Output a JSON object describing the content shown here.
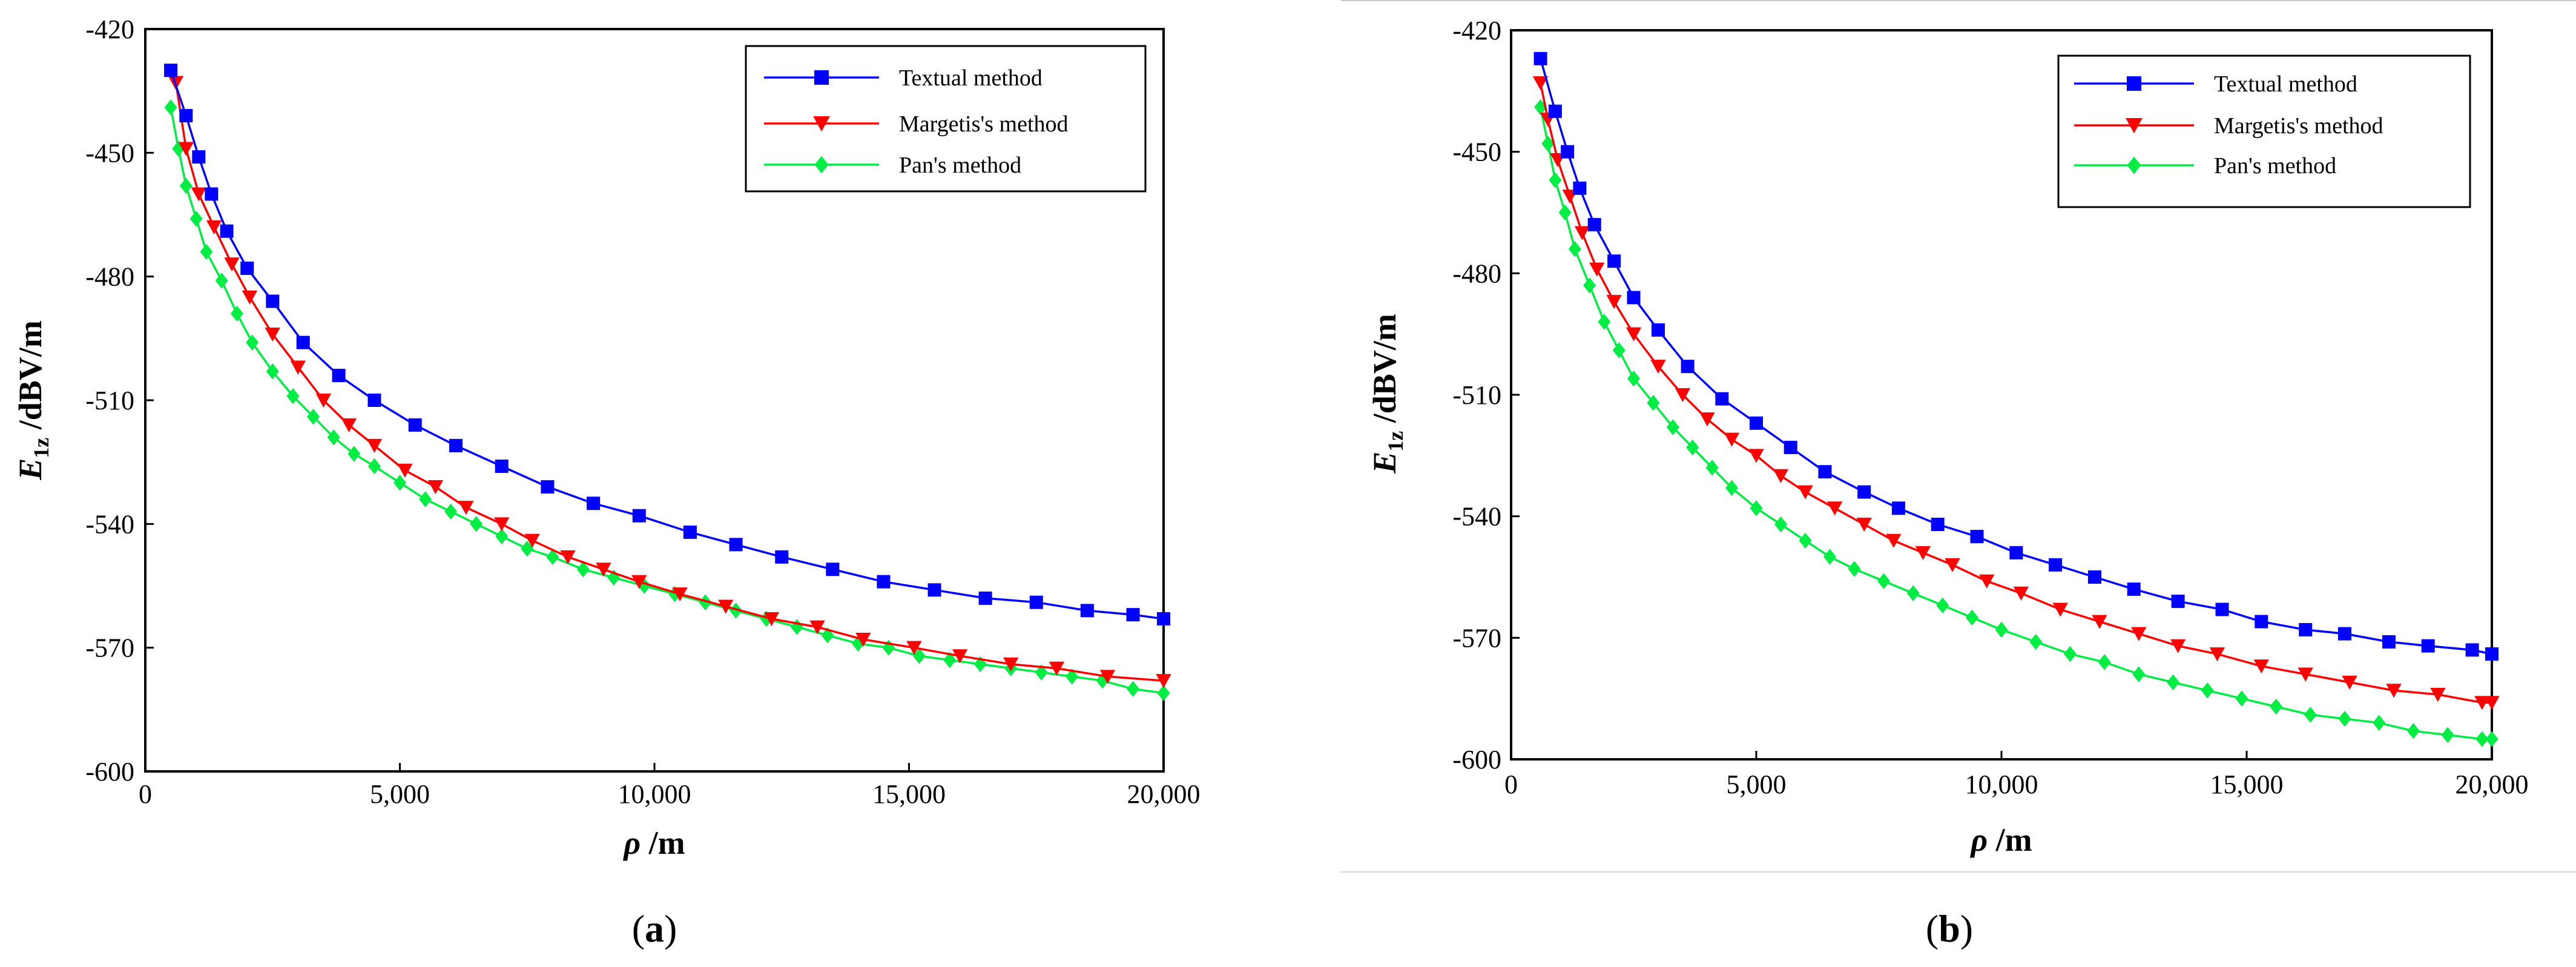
{
  "chart_data": [
    {
      "id": "a",
      "type": "line",
      "caption": "(a)",
      "caption_letter": "a",
      "xlabel": "ρ /m",
      "ylabel": "E1z /dBV/m",
      "xlim": [
        0,
        20000
      ],
      "ylim": [
        -600,
        -420
      ],
      "xticks": [
        0,
        5000,
        10000,
        15000,
        20000
      ],
      "xtick_labels": [
        "0",
        "5,000",
        "10,000",
        "15,000",
        "20,000"
      ],
      "yticks": [
        -420,
        -450,
        -480,
        -510,
        -540,
        -570,
        -600
      ],
      "ytick_labels": [
        "-420",
        "-450",
        "-480",
        "-510",
        "-540",
        "-570",
        "-600"
      ],
      "legend_position": "top-right",
      "series": [
        {
          "name": "Textual method",
          "color": "#0000ff",
          "marker": "square",
          "x": [
            500,
            800,
            1050,
            1300,
            1600,
            2000,
            2500,
            3100,
            3800,
            4500,
            5300,
            6100,
            7000,
            7900,
            8800,
            9700,
            10700,
            11600,
            12500,
            13500,
            14500,
            15500,
            16500,
            17500,
            18500,
            19400,
            20000
          ],
          "y": [
            -430,
            -441,
            -451,
            -460,
            -469,
            -478,
            -486,
            -496,
            -504,
            -510,
            -516,
            -521,
            -526,
            -531,
            -535,
            -538,
            -542,
            -545,
            -548,
            -551,
            -554,
            -556,
            -558,
            -559,
            -561,
            -562,
            -563
          ]
        },
        {
          "name": "Margetis's method",
          "color": "#ff0000",
          "marker": "triangle-down",
          "x": [
            600,
            800,
            1050,
            1350,
            1700,
            2050,
            2500,
            3000,
            3500,
            4000,
            4500,
            5100,
            5700,
            6300,
            7000,
            7600,
            8300,
            9000,
            9700,
            10500,
            11400,
            12300,
            13200,
            14100,
            15100,
            16000,
            17000,
            17900,
            18900,
            20000
          ],
          "y": [
            -433,
            -449,
            -460,
            -468,
            -477,
            -485,
            -494,
            -502,
            -510,
            -516,
            -521,
            -527,
            -531,
            -536,
            -540,
            -544,
            -548,
            -551,
            -554,
            -557,
            -560,
            -563,
            -565,
            -568,
            -570,
            -572,
            -574,
            -575,
            -577,
            -578
          ]
        },
        {
          "name": "Pan's method",
          "color": "#00ee44",
          "marker": "diamond",
          "x": [
            500,
            650,
            800,
            1000,
            1200,
            1500,
            1800,
            2100,
            2500,
            2900,
            3300,
            3700,
            4100,
            4500,
            5000,
            5500,
            6000,
            6500,
            7000,
            7500,
            8000,
            8600,
            9200,
            9800,
            10400,
            11000,
            11600,
            12200,
            12800,
            13400,
            14000,
            14600,
            15200,
            15800,
            16400,
            17000,
            17600,
            18200,
            18800,
            19400,
            20000
          ],
          "y": [
            -439,
            -449,
            -458,
            -466,
            -474,
            -481,
            -489,
            -496,
            -503,
            -509,
            -514,
            -519,
            -523,
            -526,
            -530,
            -534,
            -537,
            -540,
            -543,
            -546,
            -548,
            -551,
            -553,
            -555,
            -557,
            -559,
            -561,
            -563,
            -565,
            -567,
            -569,
            -570,
            -572,
            -573,
            -574,
            -575,
            -576,
            -577,
            -578,
            -580,
            -581
          ]
        }
      ]
    },
    {
      "id": "b",
      "type": "line",
      "caption": "(b)",
      "caption_letter": "b",
      "xlabel": "ρ /m",
      "ylabel": "E1z /dBV/m",
      "xlim": [
        0,
        20000
      ],
      "ylim": [
        -600,
        -420
      ],
      "ytop_label_value": -420,
      "xticks": [
        0,
        5000,
        10000,
        15000,
        20000
      ],
      "xtick_labels": [
        "0",
        "5,000",
        "10,000",
        "15,000",
        "20,000"
      ],
      "yticks": [
        -420,
        -450,
        -480,
        -510,
        -540,
        -570,
        -600
      ],
      "ytick_labels": [
        "-420",
        "-450",
        "-480",
        "-510",
        "-540",
        "-570",
        "-600"
      ],
      "legend_position": "top-right",
      "series": [
        {
          "name": "Textual method",
          "color": "#0000ff",
          "marker": "square",
          "x": [
            600,
            900,
            1150,
            1400,
            1700,
            2100,
            2500,
            3000,
            3600,
            4300,
            5000,
            5700,
            6400,
            7200,
            7900,
            8700,
            9500,
            10300,
            11100,
            11900,
            12700,
            13600,
            14500,
            15300,
            16200,
            17000,
            17900,
            18700,
            19600,
            20000
          ],
          "y": [
            -427,
            -440,
            -450,
            -459,
            -468,
            -477,
            -486,
            -494,
            -503,
            -511,
            -517,
            -523,
            -529,
            -534,
            -538,
            -542,
            -545,
            -549,
            -552,
            -555,
            -558,
            -561,
            -563,
            -566,
            -568,
            -569,
            -571,
            -572,
            -573,
            -574
          ]
        },
        {
          "name": "Margetis's method",
          "color": "#ff0000",
          "marker": "triangle-down",
          "x": [
            600,
            750,
            950,
            1200,
            1450,
            1750,
            2100,
            2500,
            3000,
            3500,
            4000,
            4500,
            5000,
            5500,
            6000,
            6600,
            7200,
            7800,
            8400,
            9000,
            9700,
            10400,
            11200,
            12000,
            12800,
            13600,
            14400,
            15300,
            16200,
            17100,
            18000,
            18900,
            19800,
            20000
          ],
          "y": [
            -433,
            -442,
            -452,
            -461,
            -470,
            -479,
            -487,
            -495,
            -503,
            -510,
            -516,
            -521,
            -525,
            -530,
            -534,
            -538,
            -542,
            -546,
            -549,
            -552,
            -556,
            -559,
            -563,
            -566,
            -569,
            -572,
            -574,
            -577,
            -579,
            -581,
            -583,
            -584,
            -586,
            -586
          ]
        },
        {
          "name": "Pan's method",
          "color": "#00ee44",
          "marker": "diamond",
          "x": [
            600,
            750,
            900,
            1100,
            1300,
            1600,
            1900,
            2200,
            2500,
            2900,
            3300,
            3700,
            4100,
            4500,
            5000,
            5500,
            6000,
            6500,
            7000,
            7600,
            8200,
            8800,
            9400,
            10000,
            10700,
            11400,
            12100,
            12800,
            13500,
            14200,
            14900,
            15600,
            16300,
            17000,
            17700,
            18400,
            19100,
            19800,
            20000
          ],
          "y": [
            -439,
            -448,
            -457,
            -465,
            -474,
            -483,
            -492,
            -499,
            -506,
            -512,
            -518,
            -523,
            -528,
            -533,
            -538,
            -542,
            -546,
            -550,
            -553,
            -556,
            -559,
            -562,
            -565,
            -568,
            -571,
            -574,
            -576,
            -579,
            -581,
            -583,
            -585,
            -587,
            -589,
            -590,
            -591,
            -593,
            -594,
            -595,
            -595
          ]
        }
      ]
    }
  ]
}
